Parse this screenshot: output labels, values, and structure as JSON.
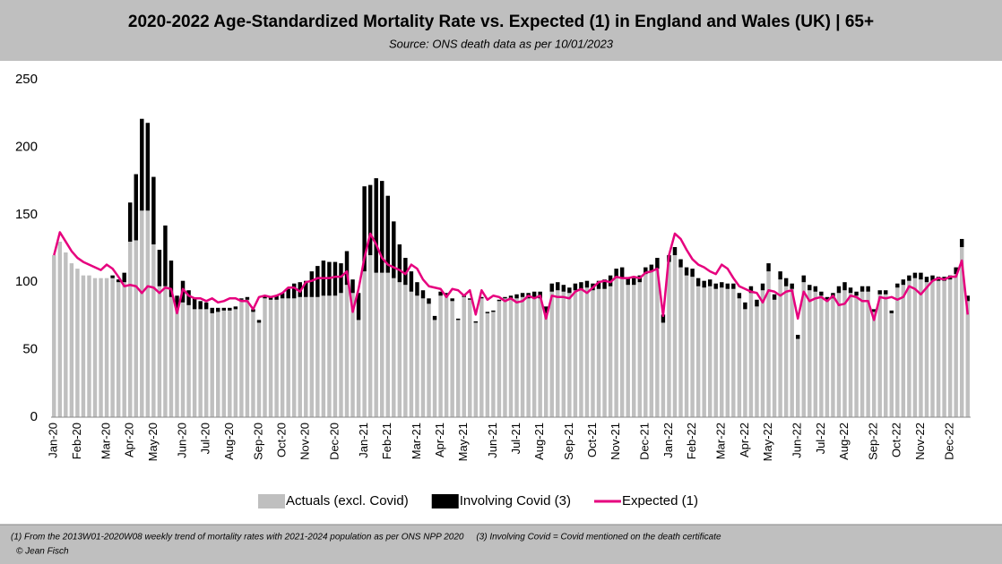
{
  "chart_data": {
    "type": "bar",
    "stacked": true,
    "title": "2020-2022 Age-Standardized Mortality Rate vs. Expected (1) in England and Wales (UK) | 65+",
    "subtitle": "Source: ONS death data as per 10/01/2023",
    "footnote": "(1) From the 2013W01-2020W08 weekly trend of mortality rates with 2021-2024 population as per ONS NPP 2020     (3) Involving Covid = Covid mentioned on the death certificate",
    "credit": "© Jean Fisch",
    "categories": [
      "Jan-20",
      null,
      null,
      null,
      "Feb-20",
      null,
      null,
      null,
      null,
      "Mar-20",
      null,
      null,
      null,
      "Apr-20",
      null,
      null,
      null,
      "May-20",
      null,
      null,
      null,
      null,
      "Jun-20",
      null,
      null,
      null,
      "Jul-20",
      null,
      null,
      null,
      "Aug-20",
      null,
      null,
      null,
      null,
      "Sep-20",
      null,
      null,
      null,
      "Oct-20",
      null,
      null,
      null,
      "Nov-20",
      null,
      null,
      null,
      null,
      "Dec-20",
      null,
      null,
      null,
      null,
      "Jan-21",
      null,
      null,
      null,
      "Feb-21",
      null,
      null,
      null,
      null,
      "Mar-21",
      null,
      null,
      null,
      "Apr-21",
      null,
      null,
      null,
      "May-21",
      null,
      null,
      null,
      null,
      "Jun-21",
      null,
      null,
      null,
      "Jul-21",
      null,
      null,
      null,
      "Aug-21",
      null,
      null,
      null,
      null,
      "Sep-21",
      null,
      null,
      null,
      "Oct-21",
      null,
      null,
      null,
      "Nov-21",
      null,
      null,
      null,
      null,
      "Dec-21",
      null,
      null,
      null,
      "Jan-22",
      null,
      null,
      null,
      "Feb-22",
      null,
      null,
      null,
      null,
      "Mar-22",
      null,
      null,
      null,
      "Apr-22",
      null,
      null,
      null,
      "May-22",
      null,
      null,
      null,
      null,
      "Jun-22",
      null,
      null,
      null,
      "Jul-22",
      null,
      null,
      null,
      "Aug-22",
      null,
      null,
      null,
      null,
      "Sep-22",
      null,
      null,
      null,
      "Oct-22",
      null,
      null,
      null,
      "Nov-22",
      null,
      null,
      null,
      null,
      "Dec-22",
      null,
      null,
      null
    ],
    "series": [
      {
        "name": "Actuals (excl. Covid)",
        "type": "bar",
        "color": "#bfbfbf",
        "values": [
          120,
          130,
          122,
          114,
          110,
          105,
          105,
          103,
          103,
          103,
          103,
          100,
          100,
          130,
          131,
          153,
          153,
          128,
          97,
          97,
          89,
          80,
          85,
          83,
          80,
          80,
          80,
          77,
          78,
          79,
          79,
          80,
          87,
          87,
          78,
          70,
          88,
          87,
          87,
          88,
          88,
          88,
          89,
          89,
          89,
          89,
          90,
          90,
          90,
          92,
          98,
          92,
          72,
          108,
          120,
          107,
          107,
          107,
          103,
          100,
          98,
          93,
          90,
          88,
          84,
          72,
          90,
          90,
          86,
          72,
          89,
          87,
          70,
          88,
          77,
          78,
          86,
          88,
          88,
          88,
          89,
          88,
          89,
          88,
          77,
          93,
          94,
          93,
          92,
          94,
          95,
          96,
          94,
          95,
          95,
          97,
          103,
          103,
          98,
          98,
          100,
          106,
          108,
          110,
          70,
          115,
          120,
          111,
          105,
          104,
          97,
          96,
          97,
          95,
          96,
          95,
          95,
          88,
          80,
          92,
          82,
          94,
          108,
          87,
          102,
          97,
          95,
          58,
          100,
          94,
          93,
          90,
          86,
          88,
          92,
          94,
          92,
          90,
          93,
          93,
          78,
          91,
          91,
          77,
          96,
          98,
          101,
          103,
          102,
          100,
          101,
          101,
          101,
          102,
          106,
          126,
          86
        ]
      },
      {
        "name": "Involving Covid (3)",
        "type": "bar",
        "color": "#000000",
        "values": [
          0,
          0,
          0,
          0,
          0,
          0,
          0,
          0,
          0,
          0,
          2,
          2,
          7,
          29,
          49,
          68,
          65,
          50,
          27,
          45,
          27,
          10,
          16,
          11,
          8,
          6,
          5,
          4,
          3,
          2,
          2,
          2,
          1,
          2,
          2,
          2,
          2,
          2,
          3,
          4,
          7,
          11,
          11,
          12,
          19,
          23,
          26,
          25,
          25,
          22,
          25,
          10,
          20,
          63,
          52,
          70,
          68,
          57,
          42,
          28,
          20,
          15,
          10,
          6,
          4,
          3,
          3,
          2,
          2,
          1,
          1,
          1,
          1,
          1,
          1,
          1,
          1,
          1,
          2,
          3,
          3,
          4,
          4,
          5,
          5,
          6,
          6,
          5,
          4,
          5,
          5,
          5,
          5,
          6,
          7,
          8,
          7,
          8,
          5,
          5,
          5,
          5,
          5,
          8,
          6,
          5,
          6,
          6,
          6,
          6,
          6,
          5,
          5,
          4,
          4,
          4,
          4,
          4,
          5,
          5,
          5,
          5,
          6,
          4,
          6,
          6,
          4,
          3,
          5,
          4,
          4,
          3,
          3,
          4,
          5,
          6,
          4,
          3,
          4,
          4,
          2,
          3,
          3,
          2,
          3,
          4,
          4,
          4,
          5,
          4,
          4,
          3,
          3,
          3,
          5,
          6,
          4
        ]
      },
      {
        "name": "Expected (1)",
        "type": "line",
        "color": "#e6007e",
        "values": [
          120,
          137,
          130,
          123,
          118,
          115,
          113,
          111,
          109,
          113,
          110,
          104,
          97,
          98,
          97,
          92,
          97,
          96,
          92,
          96,
          95,
          77,
          95,
          90,
          88,
          88,
          86,
          88,
          85,
          86,
          88,
          88,
          86,
          86,
          80,
          89,
          90,
          89,
          90,
          92,
          96,
          96,
          93,
          100,
          101,
          103,
          103,
          103,
          104,
          104,
          108,
          78,
          95,
          118,
          136,
          128,
          118,
          113,
          111,
          109,
          106,
          113,
          110,
          102,
          97,
          96,
          95,
          89,
          95,
          94,
          90,
          94,
          76,
          94,
          87,
          90,
          89,
          86,
          88,
          85,
          86,
          90,
          88,
          90,
          73,
          90,
          89,
          89,
          88,
          93,
          95,
          92,
          96,
          100,
          101,
          100,
          104,
          103,
          103,
          104,
          103,
          107,
          108,
          110,
          75,
          120,
          136,
          132,
          124,
          117,
          113,
          111,
          108,
          106,
          113,
          110,
          103,
          97,
          95,
          93,
          92,
          85,
          94,
          93,
          90,
          93,
          94,
          73,
          93,
          86,
          88,
          89,
          86,
          90,
          83,
          84,
          90,
          89,
          86,
          86,
          72,
          89,
          88,
          89,
          87,
          89,
          97,
          95,
          91,
          96,
          101,
          103,
          102,
          104,
          104,
          116,
          76
        ]
      }
    ],
    "ylim": [
      0,
      250
    ],
    "yticks": [
      0,
      50,
      100,
      150,
      200,
      250
    ],
    "grid": false,
    "legend": "bottom"
  }
}
